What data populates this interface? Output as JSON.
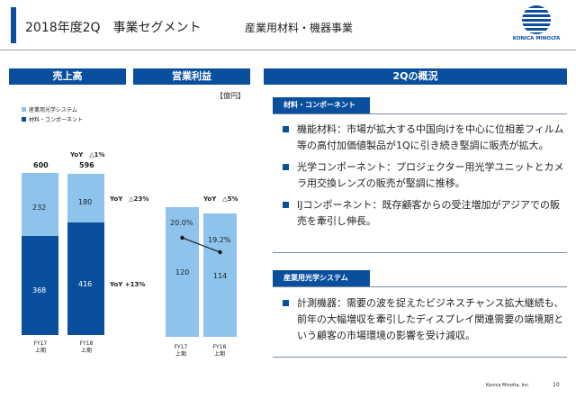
{
  "header": {
    "title": "2018年度2Q　事業セグメント",
    "subtitle": "産業用材料・機器事業",
    "logo_text": "KONICA MINOLTA"
  },
  "pills": {
    "sales": "売上高",
    "profit": "営業利益",
    "overview": "2Qの概況"
  },
  "unit": "【億円】",
  "legend": [
    {
      "label": "産業用光学システム",
      "color": "#8ec3ec"
    },
    {
      "label": "材料・コンポーネント",
      "color": "#0a4f9e"
    }
  ],
  "colors": {
    "light": "#8ec3ec",
    "dark": "#0a4f9e"
  },
  "chart_data": [
    {
      "type": "bar",
      "stacked": true,
      "title": "売上高",
      "categories": [
        "FY17\n上期",
        "FY18\n上期"
      ],
      "series": [
        {
          "name": "材料・コンポーネント",
          "values": [
            368,
            416
          ]
        },
        {
          "name": "産業用光学システム",
          "values": [
            232,
            180
          ]
        }
      ],
      "totals": [
        600,
        596
      ],
      "annotations": [
        "YoY　△1%",
        "YoY　△23%",
        "YoY +13%"
      ]
    },
    {
      "type": "bar",
      "title": "営業利益",
      "categories": [
        "FY17\n上期",
        "FY18\n上期"
      ],
      "values": [
        120,
        114
      ],
      "line_series": {
        "values": [
          20.0,
          19.2
        ],
        "labels": [
          "20.0%",
          "19.2%"
        ]
      },
      "annotations": [
        "YoY　△5%"
      ]
    }
  ],
  "sections": [
    {
      "title": "材料・コンポーネント",
      "bullets": [
        "機能材料：市場が拡大する中国向けを中心に位相差フィルム等の高付加価値製品が1Qに引き続き堅調に販売が拡大。",
        "光学コンポーネント：プロジェクター用光学ユニットとカメラ用交換レンズの販売が堅調に推移。",
        "IJコンポーネント：既存顧客からの受注増加がアジアでの販売を牽引し伸長。"
      ]
    },
    {
      "title": "産業用光学システム",
      "bullets": [
        "計測機器：需要の波を捉えたビジネスチャンス拡大継続も、前年の大幅増収を牽引したディスプレイ関連需要の端境期という顧客の市場環境の影響を受け減収。"
      ]
    }
  ],
  "footer": {
    "company": "Konica Minolta, Inc.",
    "page": "10"
  }
}
